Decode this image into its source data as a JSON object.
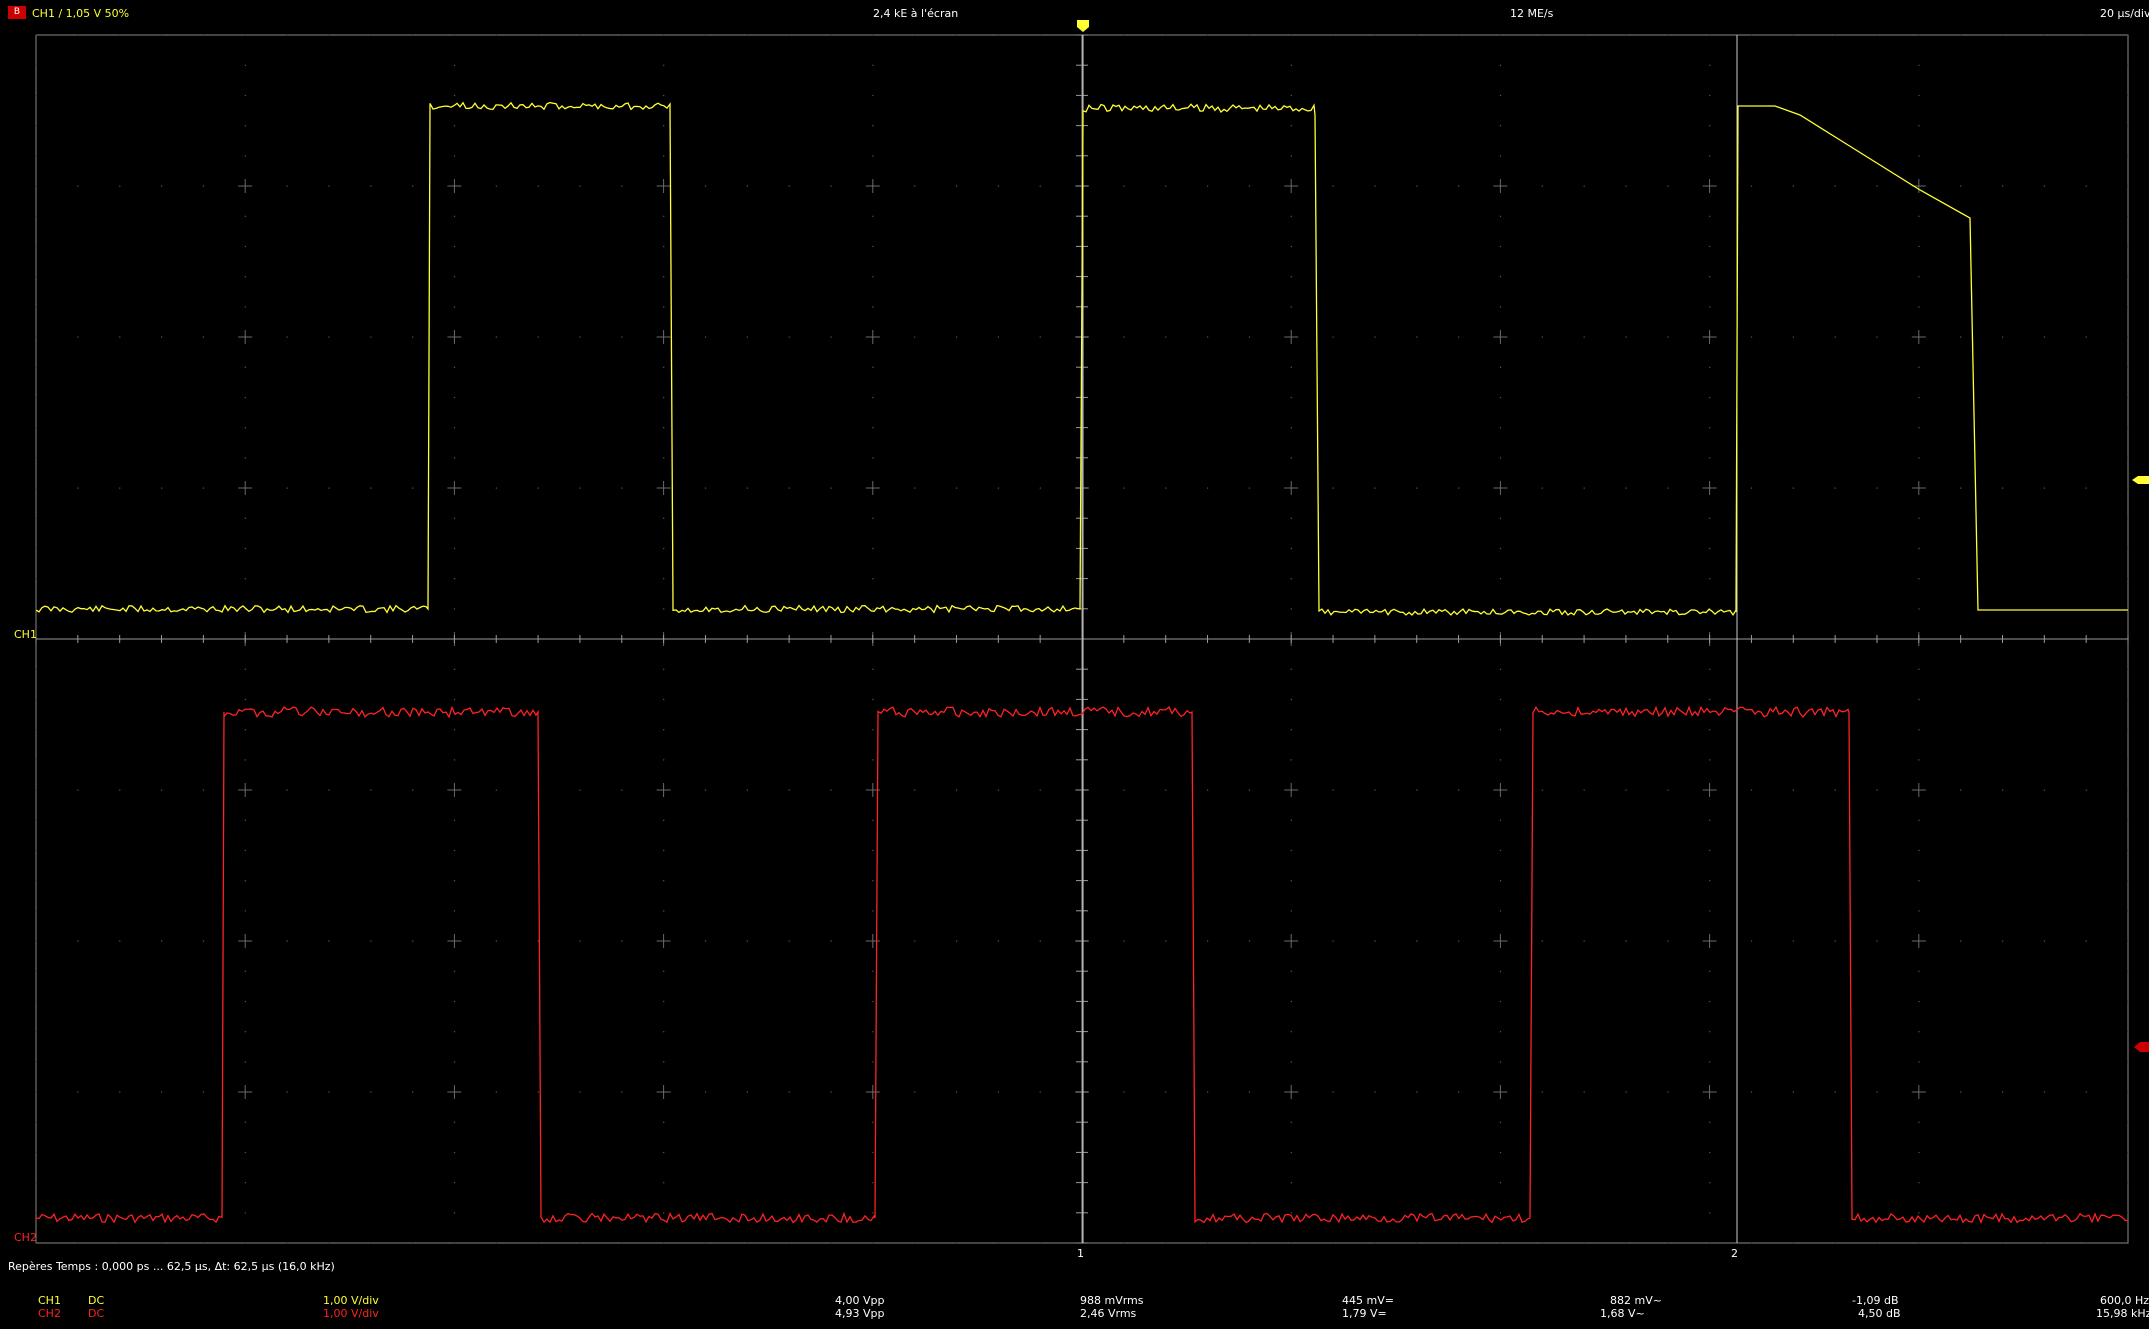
{
  "status_bar": {
    "trigger_badge": "B",
    "trigger_info": "CH1  /  1,05 V  50%",
    "samples_on_screen": "2,4 kE à l'écran",
    "sample_rate": "12 ME/s",
    "timebase": "20 µs/div"
  },
  "channels": {
    "ch1_label": "CH1",
    "ch2_label": "CH2",
    "ch1_color": "#ffff33",
    "ch2_color": "#ff2222",
    "grid_color": "#5a5a5a",
    "marker1_label": "1",
    "marker2_label": "2"
  },
  "markers": {
    "info": "Repères  Temps : 0,000 ps ... 62,5 µs,  Δt: 62,5 µs (16,0 kHz)"
  },
  "measurements": {
    "ch1": {
      "name": "CH1",
      "coupling": "DC",
      "scale": "1,00 V/div",
      "vpp": "4,00 Vpp",
      "vrms": "988 mVrms",
      "vdc": "445 mV=",
      "vac": "882 mV~",
      "db1": "-1,09 dB",
      "freq": "600,0 Hz"
    },
    "ch2": {
      "name": "CH2",
      "coupling": "DC",
      "scale": "1,00 V/div",
      "vpp": "4,93 Vpp",
      "vrms": "2,46 Vrms",
      "vdc": "1,79 V=",
      "vac": "1,68 V~",
      "db1": "4,50 dB",
      "freq": "15,98 kHz"
    }
  }
}
